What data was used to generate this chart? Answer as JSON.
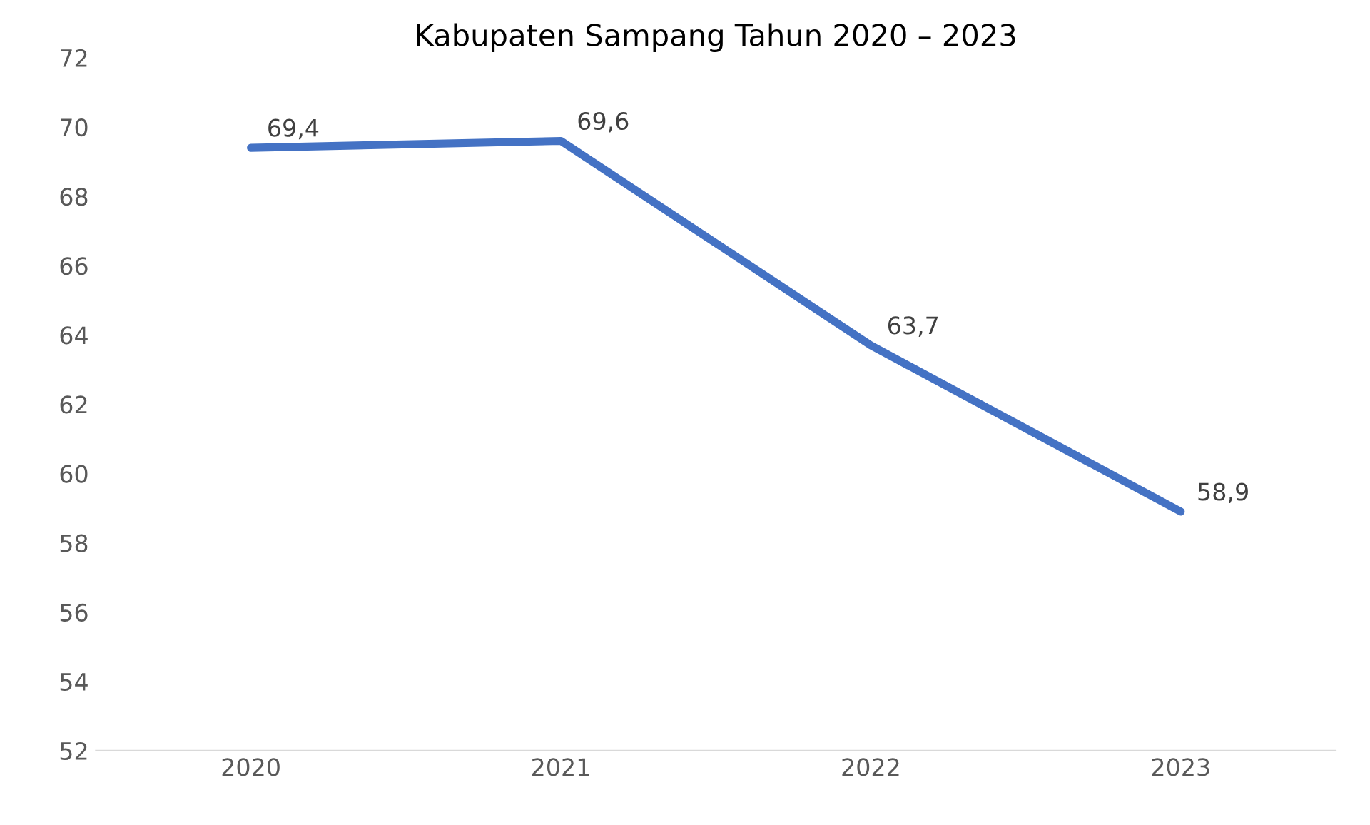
{
  "chart_data": {
    "type": "line",
    "title": "Kabupaten Sampang Tahun 2020 – 2023",
    "categories": [
      "2020",
      "2021",
      "2022",
      "2023"
    ],
    "series": [
      {
        "color": "#4472c4",
        "values": [
          69.4,
          69.6,
          63.7,
          58.9
        ],
        "value_labels": [
          "69,4",
          "69,6",
          "63,7",
          "58,9"
        ]
      }
    ],
    "ylim": [
      52,
      72
    ],
    "yticks": [
      52,
      54,
      56,
      58,
      60,
      62,
      64,
      66,
      68,
      70,
      72
    ],
    "line_style": "solid"
  }
}
